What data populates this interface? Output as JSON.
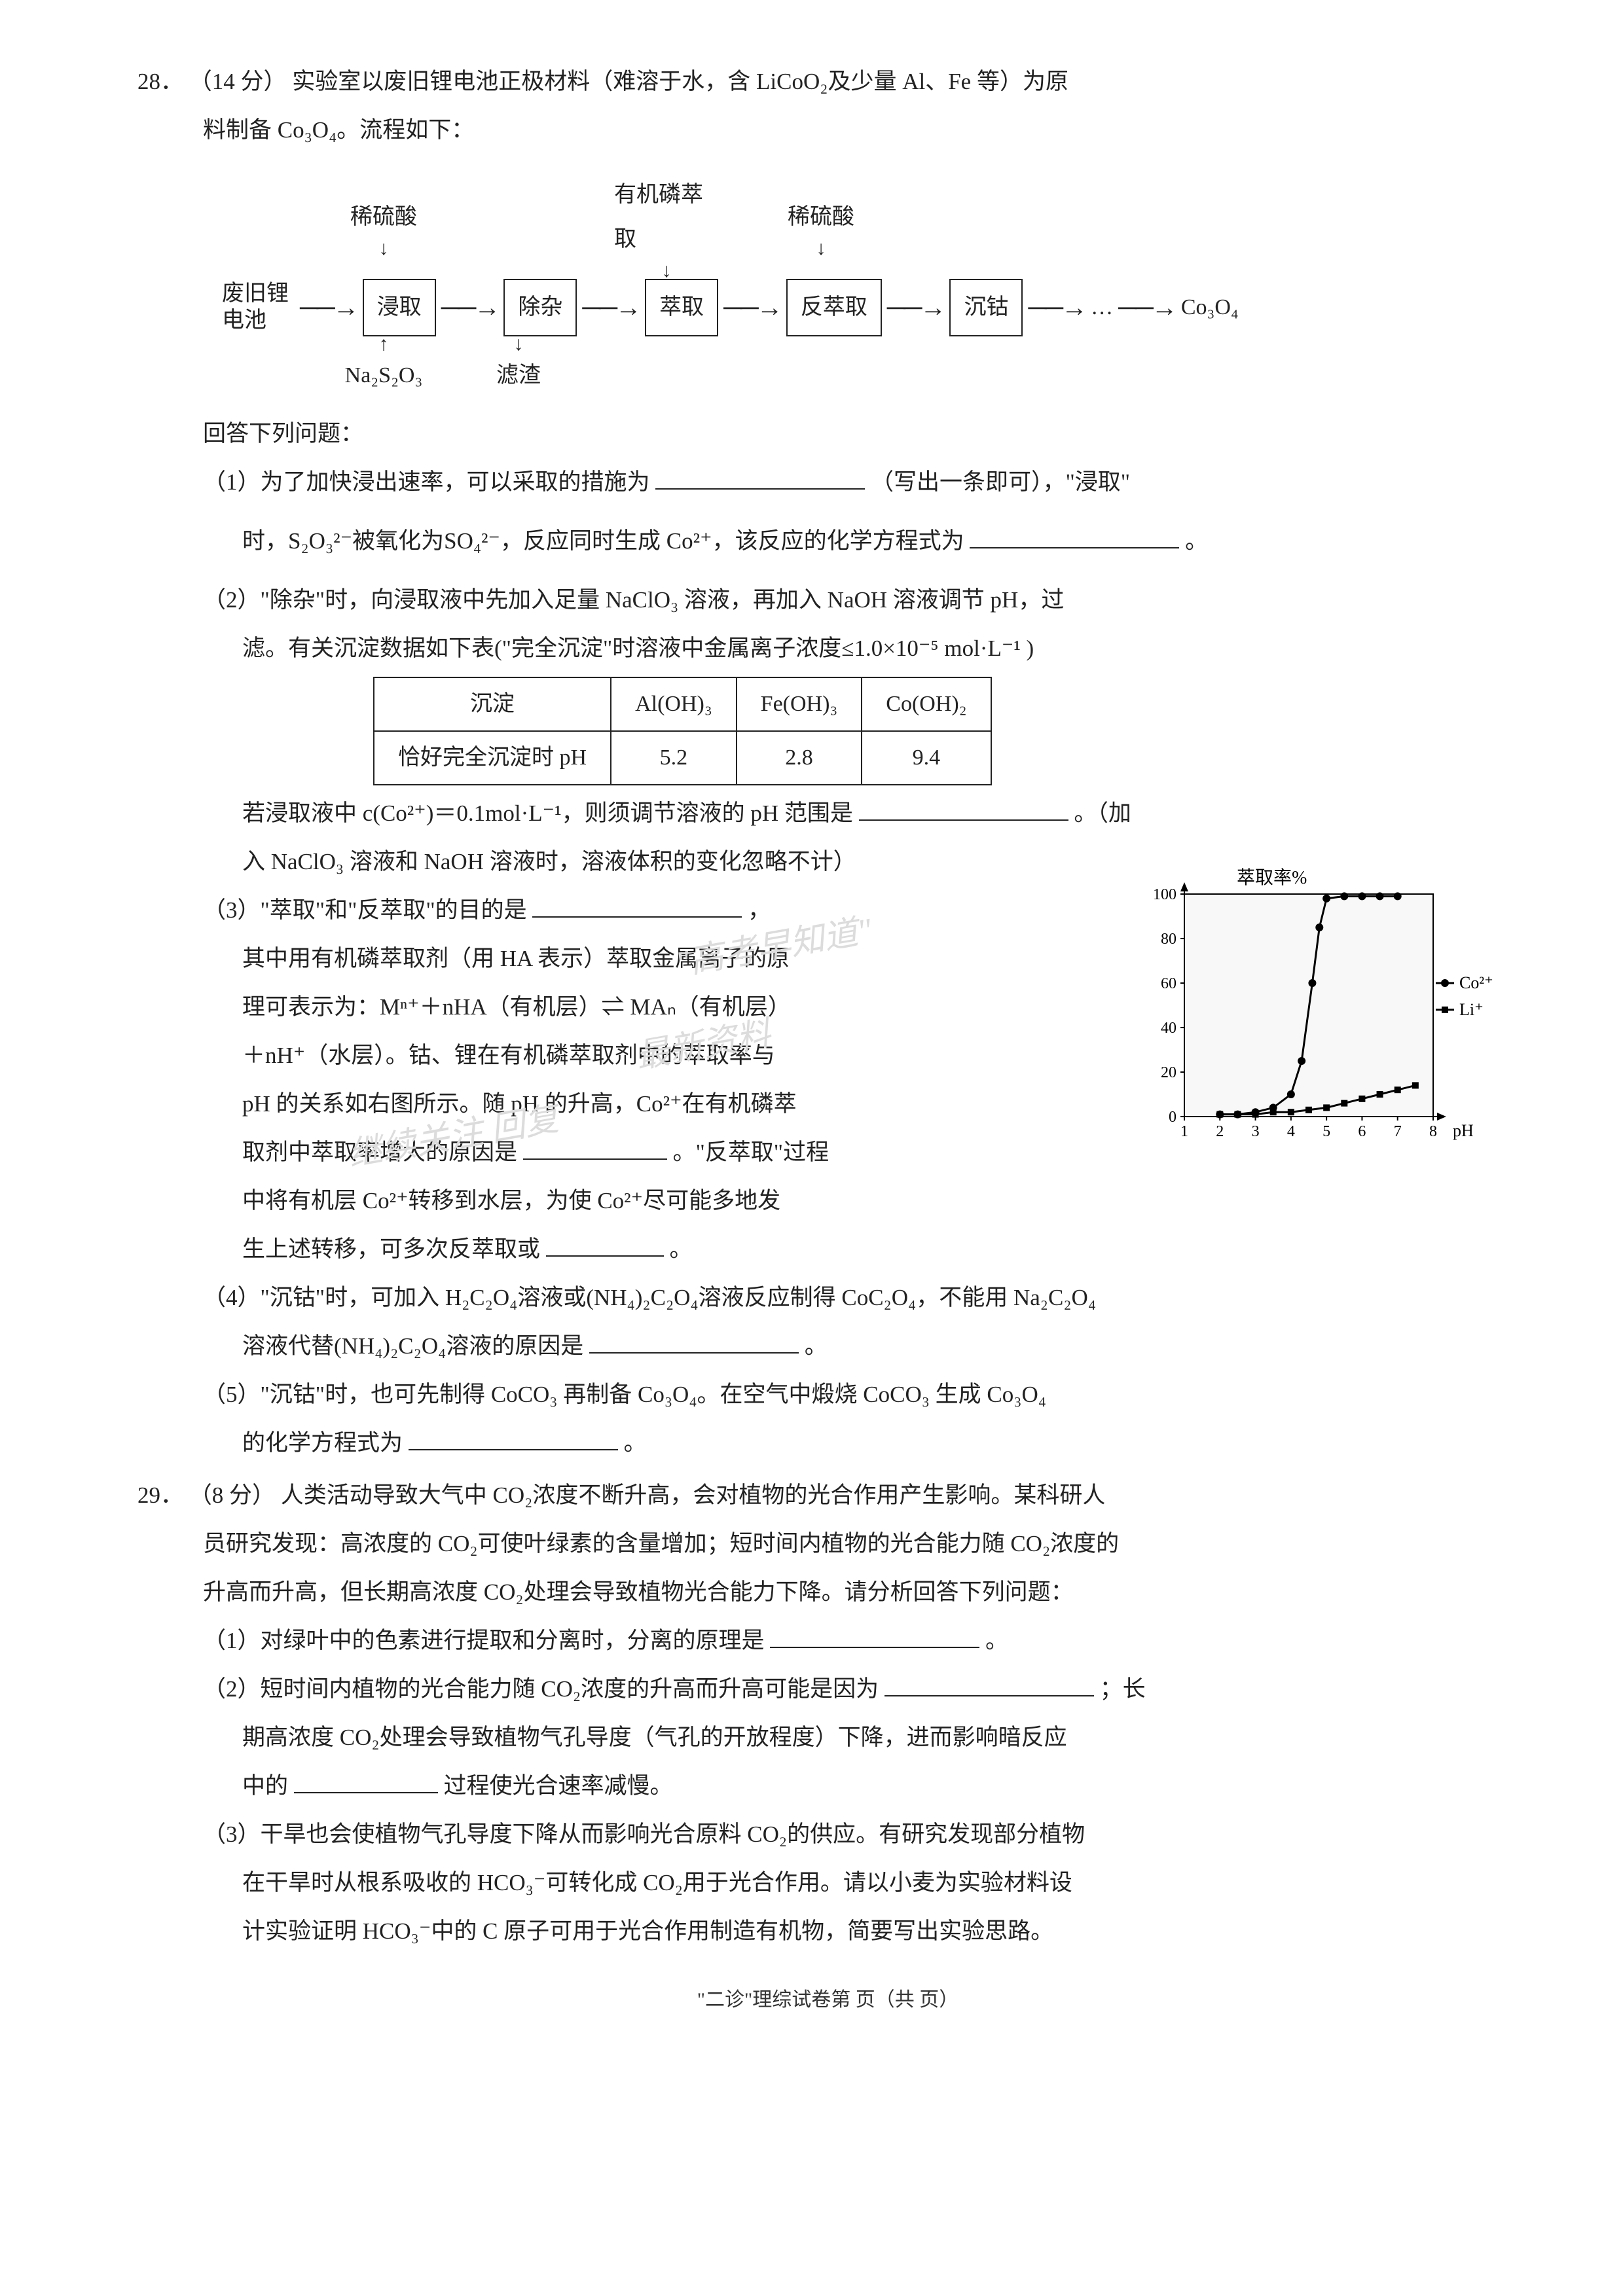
{
  "q28": {
    "number": "28．",
    "points": "（14 分）",
    "intro_l1": "实验室以废旧锂电池正极材料（难溶于水，含 LiCoO₂及少量 Al、Fe 等）为原",
    "intro_l2": "料制备 Co₃O₄。流程如下：",
    "flow": {
      "in_label": "废旧锂\n电池",
      "top_labels": [
        "稀硫酸",
        "有机磷萃取",
        "稀硫酸"
      ],
      "boxes": [
        "浸取",
        "除杂",
        "萃取",
        "反萃取",
        "沉钴"
      ],
      "bot_labels": [
        "Na₂S₂O₃",
        "滤渣"
      ],
      "out": "Co₃O₄",
      "dots": "…"
    },
    "answer_header": "回答下列问题：",
    "p1_a": "（1）为了加快浸出速率，可以采取的措施为",
    "p1_b": "（写出一条即可），\"浸取\"",
    "p1_c": "时，S₂O₃²⁻被氧化为SO₄²⁻，反应同时生成 Co²⁺，该反应的化学方程式为",
    "p1_end": "。",
    "p2_a": "（2）\"除杂\"时，向浸取液中先加入足量 NaClO₃ 溶液，再加入 NaOH 溶液调节 pH，过",
    "p2_b": "滤。有关沉淀数据如下表(\"完全沉淀\"时溶液中金属离子浓度≤1.0×10⁻⁵ mol·L⁻¹ )",
    "table": {
      "h1": "沉淀",
      "h2": "Al(OH)₃",
      "h3": "Fe(OH)₃",
      "h4": "Co(OH)₂",
      "r1": "恰好完全沉淀时 pH",
      "v1": "5.2",
      "v2": "2.8",
      "v3": "9.4"
    },
    "p2_c": "若浸取液中 c(Co²⁺)＝0.1mol·L⁻¹，则须调节溶液的 pH 范围是",
    "p2_d": "。（加",
    "p2_e": "入 NaClO₃ 溶液和 NaOH 溶液时，溶液体积的变化忽略不计）",
    "p3_a": "（3）\"萃取\"和\"反萃取\"的目的是",
    "p3_b": "，",
    "p3_c": "其中用有机磷萃取剂（用 HA 表示）萃取金属离子的原",
    "p3_d": "理可表示为：Mⁿ⁺＋nHA（有机层）⇌ MAₙ（有机层）",
    "p3_e": "＋nH⁺（水层）。钴、锂在有机磷萃取剂中的萃取率与",
    "p3_f": "pH 的关系如右图所示。随 pH 的升高，Co²⁺在有机磷萃",
    "p3_g": "取剂中萃取率增大的原因是",
    "p3_h": "。\"反萃取\"过程",
    "p3_i": "中将有机层 Co²⁺转移到水层，为使 Co²⁺尽可能多地发",
    "p3_j": "生上述转移，可多次反萃取或",
    "p3_k": "。",
    "p4_a": "（4）\"沉钴\"时，可加入 H₂C₂O₄溶液或(NH₄)₂C₂O₄溶液反应制得 CoC₂O₄，不能用 Na₂C₂O₄",
    "p4_b": "溶液代替(NH₄)₂C₂O₄溶液的原因是",
    "p4_c": "。",
    "p5_a": "（5）\"沉钴\"时，也可先制得 CoCO₃ 再制备 Co₃O₄。在空气中煅烧 CoCO₃ 生成 Co₃O₄",
    "p5_b": "的化学方程式为",
    "p5_c": "。",
    "chart": {
      "title": "萃取率%",
      "y_ticks": [
        0,
        20,
        40,
        60,
        80,
        100
      ],
      "x_ticks": [
        1,
        2,
        3,
        4,
        5,
        6,
        7,
        8
      ],
      "x_label": "pH",
      "series": [
        {
          "name": "Co²⁺",
          "marker": "circle",
          "color": "#000000",
          "points": [
            [
              2,
              1
            ],
            [
              2.5,
              1
            ],
            [
              3,
              2
            ],
            [
              3.5,
              4
            ],
            [
              4,
              10
            ],
            [
              4.3,
              25
            ],
            [
              4.6,
              60
            ],
            [
              4.8,
              85
            ],
            [
              5,
              98
            ],
            [
              5.5,
              99
            ],
            [
              6,
              99
            ],
            [
              6.5,
              99
            ],
            [
              7,
              99
            ]
          ]
        },
        {
          "name": "Li⁺",
          "marker": "square",
          "color": "#000000",
          "points": [
            [
              2,
              1
            ],
            [
              2.5,
              1
            ],
            [
              3,
              1
            ],
            [
              3.5,
              2
            ],
            [
              4,
              2
            ],
            [
              4.5,
              3
            ],
            [
              5,
              4
            ],
            [
              5.5,
              6
            ],
            [
              6,
              8
            ],
            [
              6.5,
              10
            ],
            [
              7,
              12
            ],
            [
              7.5,
              14
            ]
          ]
        }
      ],
      "bg": "#f8f8f8",
      "grid_color": "#bdbdbd"
    }
  },
  "q29": {
    "number": "29．",
    "points": "（8 分）",
    "l1": "人类活动导致大气中 CO₂浓度不断升高，会对植物的光合作用产生影响。某科研人",
    "l2": "员研究发现：高浓度的 CO₂可使叶绿素的含量增加；短时间内植物的光合能力随 CO₂浓度的",
    "l3": "升高而升高，但长期高浓度 CO₂处理会导致植物光合能力下降。请分析回答下列问题：",
    "p1": "（1）对绿叶中的色素进行提取和分离时，分离的原理是",
    "p1_end": "。",
    "p2_a": "（2）短时间内植物的光合能力随 CO₂浓度的升高而升高可能是因为",
    "p2_b": "；长",
    "p2_c": "期高浓度 CO₂处理会导致植物气孔导度（气孔的开放程度）下降，进而影响暗反应",
    "p2_d": "中的",
    "p2_e": "过程使光合速率减慢。",
    "p3_a": "（3）干旱也会使植物气孔导度下降从而影响光合原料 CO₂的供应。有研究发现部分植物",
    "p3_b": "在干旱时从根系吸收的 HCO₃⁻可转化成 CO₂用于光合作用。请以小麦为实验材料设",
    "p3_c": "计实验证明 HCO₃⁻中的 C 原子可用于光合作用制造有机物，简要写出实验思路。"
  },
  "footer": "\"二诊\"理综试卷第    页（共    页）",
  "watermark": {
    "line1": "\"高考早知道\"",
    "line2": "最新资料",
    "line3": "继续关注  回复"
  }
}
